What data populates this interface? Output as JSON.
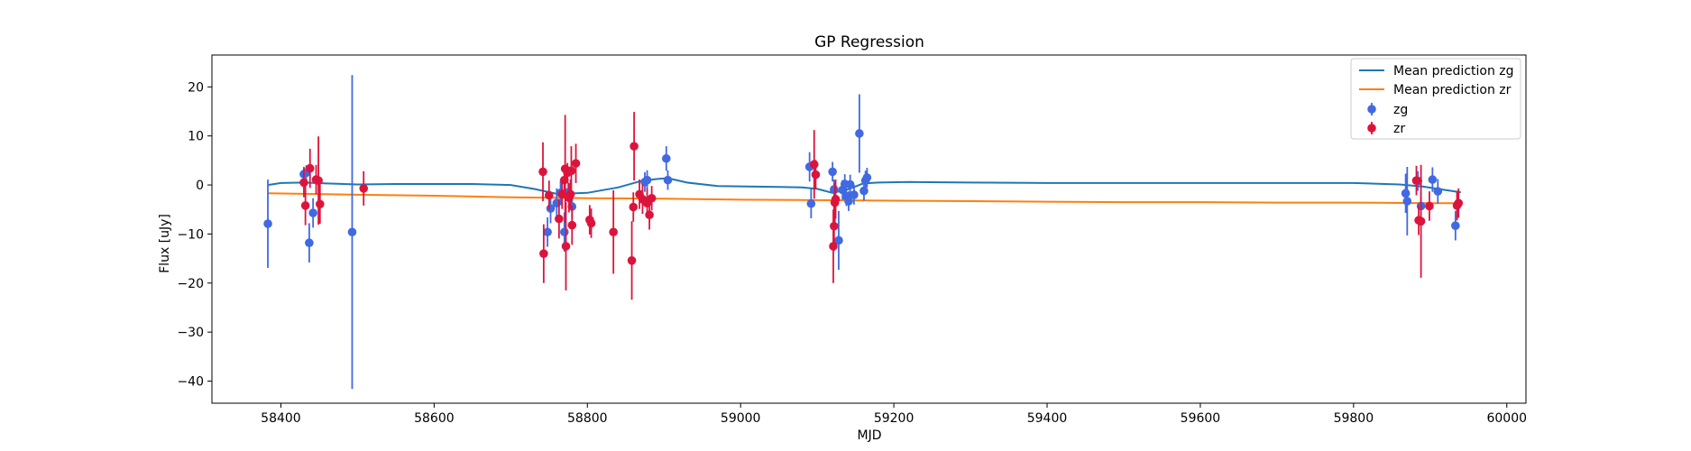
{
  "chart_data": {
    "type": "scatter",
    "title": "GP Regression",
    "xlabel": "MJD",
    "ylabel": "Flux [uJy]",
    "xlim": [
      58310,
      60025
    ],
    "ylim": [
      -44.5,
      26.5
    ],
    "xticks": [
      58400,
      58600,
      58800,
      59000,
      59200,
      59400,
      59600,
      59800,
      60000
    ],
    "yticks": [
      -40,
      -30,
      -20,
      -10,
      0,
      10,
      20
    ],
    "legend_position": "top-right",
    "lines": [
      {
        "name": "Mean prediction zg",
        "color": "#1f77b4",
        "x": [
          58383,
          58400,
          58430,
          58460,
          58500,
          58550,
          58600,
          58650,
          58700,
          58730,
          58760,
          58800,
          58840,
          58870,
          58890,
          58905,
          58930,
          58970,
          59010,
          59050,
          59080,
          59100,
          59120,
          59140,
          59160,
          59180,
          59220,
          59300,
          59400,
          59500,
          59600,
          59700,
          59800,
          59860,
          59890,
          59910,
          59940
        ],
        "y": [
          0.0,
          0.4,
          0.5,
          0.3,
          0.1,
          0.2,
          0.2,
          0.2,
          0.0,
          -0.8,
          -1.8,
          -1.6,
          -0.5,
          0.8,
          1.2,
          1.4,
          0.5,
          -0.2,
          -0.3,
          -0.4,
          -0.5,
          -0.8,
          -1.6,
          -0.9,
          0.3,
          0.5,
          0.6,
          0.5,
          0.4,
          0.4,
          0.4,
          0.4,
          0.4,
          0.1,
          -0.3,
          -0.8,
          -1.5
        ]
      },
      {
        "name": "Mean prediction zr",
        "color": "#ff7f0e",
        "x": [
          58383,
          58500,
          58600,
          58700,
          58800,
          58900,
          59000,
          59100,
          59200,
          59300,
          59400,
          59500,
          59600,
          59700,
          59800,
          59900,
          59940
        ],
        "y": [
          -1.7,
          -2.0,
          -2.2,
          -2.5,
          -2.7,
          -2.8,
          -3.0,
          -3.1,
          -3.2,
          -3.3,
          -3.4,
          -3.5,
          -3.5,
          -3.6,
          -3.6,
          -3.7,
          -3.7
        ]
      }
    ],
    "series": [
      {
        "name": "zg",
        "color": "#4169e1",
        "points": [
          {
            "x": 58383,
            "y": -7.9,
            "err": 9
          },
          {
            "x": 58430,
            "y": 2.2,
            "err": 1.5
          },
          {
            "x": 58433,
            "y": 2.5,
            "err": 1.5
          },
          {
            "x": 58437,
            "y": -11.8,
            "err": 4
          },
          {
            "x": 58442,
            "y": -5.7,
            "err": 3
          },
          {
            "x": 58493,
            "y": -9.6,
            "err": 32
          },
          {
            "x": 58748,
            "y": -9.6,
            "err": 3
          },
          {
            "x": 58752,
            "y": -4.8,
            "err": 3
          },
          {
            "x": 58760,
            "y": -3.7,
            "err": 3
          },
          {
            "x": 58765,
            "y": -1.6,
            "err": 2.5
          },
          {
            "x": 58770,
            "y": -9.6,
            "err": 4
          },
          {
            "x": 58775,
            "y": -1.5,
            "err": 2
          },
          {
            "x": 58780,
            "y": -4.4,
            "err": 2.5
          },
          {
            "x": 58875,
            "y": 0.6,
            "err": 2
          },
          {
            "x": 58878,
            "y": 1.0,
            "err": 2
          },
          {
            "x": 58903,
            "y": 5.4,
            "err": 2.5
          },
          {
            "x": 58905,
            "y": 1.0,
            "err": 2
          },
          {
            "x": 59090,
            "y": 3.7,
            "err": 3
          },
          {
            "x": 59092,
            "y": -3.8,
            "err": 3
          },
          {
            "x": 59120,
            "y": 2.7,
            "err": 2
          },
          {
            "x": 59122,
            "y": -0.9,
            "err": 2
          },
          {
            "x": 59128,
            "y": -11.3,
            "err": 6
          },
          {
            "x": 59133,
            "y": -1.0,
            "err": 2
          },
          {
            "x": 59136,
            "y": 0.2,
            "err": 2
          },
          {
            "x": 59138,
            "y": -2.3,
            "err": 2
          },
          {
            "x": 59141,
            "y": -3.3,
            "err": 2
          },
          {
            "x": 59143,
            "y": 0.1,
            "err": 2
          },
          {
            "x": 59148,
            "y": -2.0,
            "err": 2
          },
          {
            "x": 59155,
            "y": 10.5,
            "err": 8
          },
          {
            "x": 59161,
            "y": -1.2,
            "err": 2
          },
          {
            "x": 59163,
            "y": 0.9,
            "err": 2
          },
          {
            "x": 59165,
            "y": 1.5,
            "err": 2
          },
          {
            "x": 59868,
            "y": -1.7,
            "err": 4
          },
          {
            "x": 59870,
            "y": -3.3,
            "err": 7
          },
          {
            "x": 59884,
            "y": 0.8,
            "err": 2
          },
          {
            "x": 59888,
            "y": -4.3,
            "err": 3
          },
          {
            "x": 59903,
            "y": 1.1,
            "err": 2.5
          },
          {
            "x": 59910,
            "y": -1.3,
            "err": 2.5
          },
          {
            "x": 59933,
            "y": -8.3,
            "err": 3
          }
        ]
      },
      {
        "name": "zr",
        "color": "#dc143c",
        "points": [
          {
            "x": 58430,
            "y": 0.5,
            "err": 3
          },
          {
            "x": 58432,
            "y": -4.2,
            "err": 4
          },
          {
            "x": 58438,
            "y": 3.4,
            "err": 4
          },
          {
            "x": 58446,
            "y": 1.1,
            "err": 3
          },
          {
            "x": 58449,
            "y": 0.9,
            "err": 9
          },
          {
            "x": 58451,
            "y": -3.9,
            "err": 4
          },
          {
            "x": 58508,
            "y": -0.7,
            "err": 3.5
          },
          {
            "x": 58742,
            "y": 2.7,
            "err": 6
          },
          {
            "x": 58743,
            "y": -14.0,
            "err": 6
          },
          {
            "x": 58750,
            "y": -2.1,
            "err": 3
          },
          {
            "x": 58763,
            "y": -6.9,
            "err": 4
          },
          {
            "x": 58767,
            "y": -1.9,
            "err": 3
          },
          {
            "x": 58770,
            "y": 1.0,
            "err": 2.5
          },
          {
            "x": 58771,
            "y": 3.3,
            "err": 11
          },
          {
            "x": 58772,
            "y": -12.5,
            "err": 9
          },
          {
            "x": 58774,
            "y": 2.5,
            "err": 2
          },
          {
            "x": 58776,
            "y": -2.6,
            "err": 3
          },
          {
            "x": 58778,
            "y": -1.9,
            "err": 3
          },
          {
            "x": 58779,
            "y": 2.9,
            "err": 5
          },
          {
            "x": 58780,
            "y": -8.2,
            "err": 4
          },
          {
            "x": 58785,
            "y": 4.4,
            "err": 4
          },
          {
            "x": 58803,
            "y": -7.1,
            "err": 3
          },
          {
            "x": 58805,
            "y": -7.8,
            "err": 3
          },
          {
            "x": 58834,
            "y": -9.6,
            "err": 8.5
          },
          {
            "x": 58858,
            "y": -15.4,
            "err": 8
          },
          {
            "x": 58860,
            "y": -4.5,
            "err": 3
          },
          {
            "x": 58861,
            "y": 7.9,
            "err": 7
          },
          {
            "x": 58868,
            "y": -1.9,
            "err": 3
          },
          {
            "x": 58872,
            "y": -2.9,
            "err": 3
          },
          {
            "x": 58878,
            "y": -3.7,
            "err": 3
          },
          {
            "x": 58881,
            "y": -6.1,
            "err": 3
          },
          {
            "x": 58884,
            "y": -2.7,
            "err": 2.5
          },
          {
            "x": 59096,
            "y": 4.2,
            "err": 7
          },
          {
            "x": 59098,
            "y": 2.1,
            "err": 3
          },
          {
            "x": 59121,
            "y": -12.5,
            "err": 7.5
          },
          {
            "x": 59122,
            "y": -8.4,
            "err": 5
          },
          {
            "x": 59123,
            "y": -3.6,
            "err": 4
          },
          {
            "x": 59124,
            "y": -2.9,
            "err": 4
          },
          {
            "x": 59882,
            "y": 0.9,
            "err": 3
          },
          {
            "x": 59885,
            "y": -7.2,
            "err": 3
          },
          {
            "x": 59888,
            "y": -7.4,
            "err": 11.5
          },
          {
            "x": 59899,
            "y": -4.3,
            "err": 3
          },
          {
            "x": 59935,
            "y": -4.2,
            "err": 3
          },
          {
            "x": 59937,
            "y": -3.7,
            "err": 3
          }
        ]
      }
    ]
  }
}
